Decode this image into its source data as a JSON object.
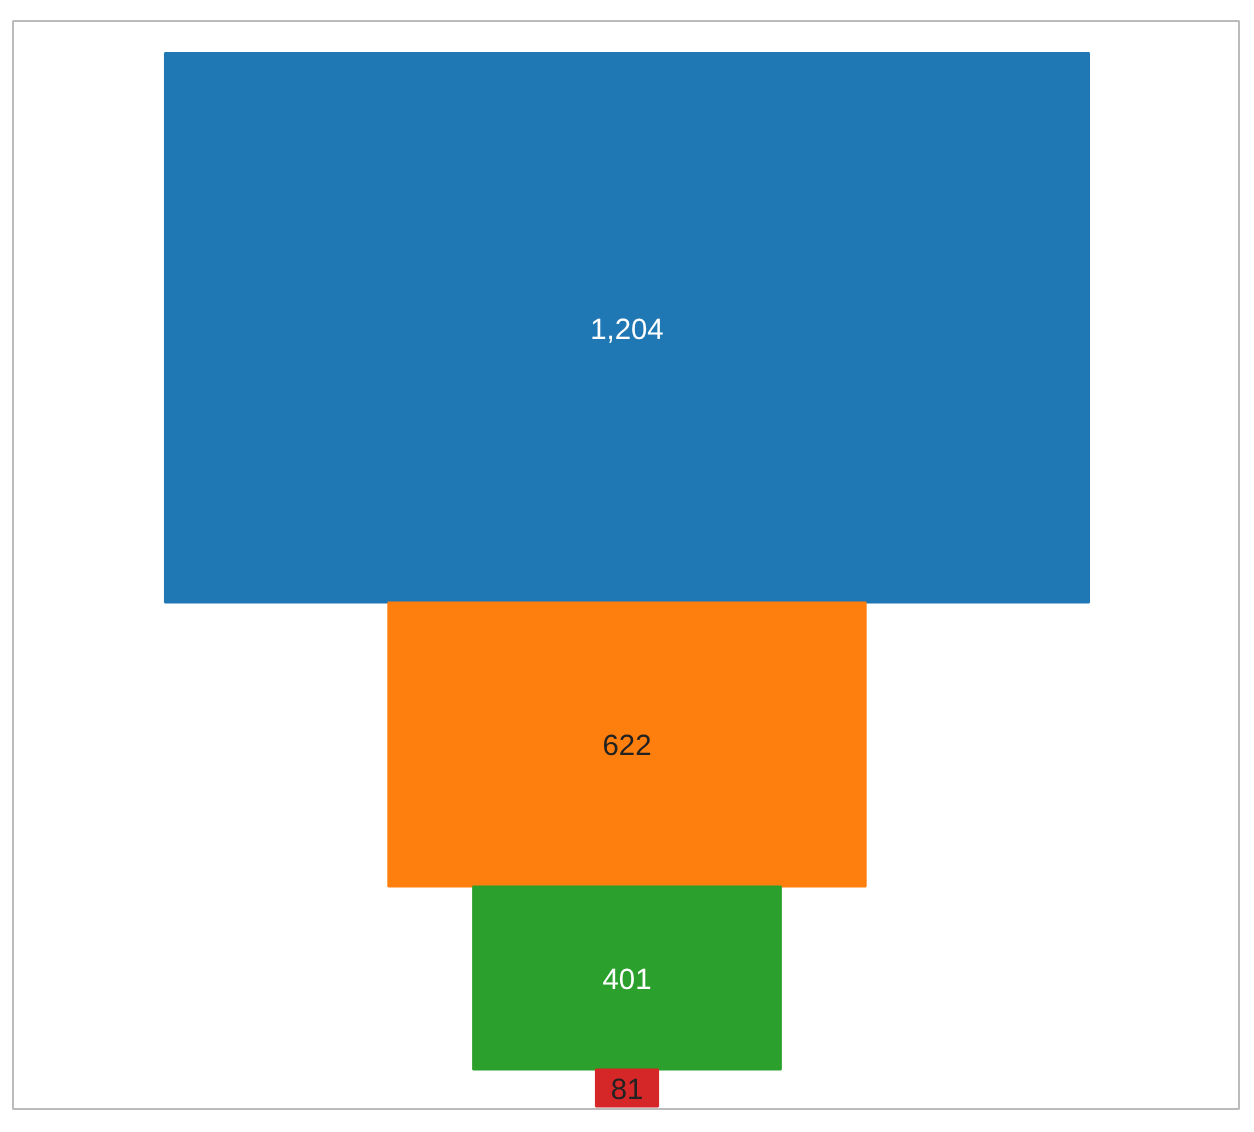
{
  "chart_data": {
    "type": "other",
    "categories": [
      null,
      null,
      null,
      null
    ],
    "values": [
      1204,
      622,
      401,
      81
    ],
    "value_labels": [
      "1,204",
      "622",
      "401",
      "81"
    ],
    "colors": [
      "#1f77b4",
      "#ff7f0e",
      "#2ca02c",
      "#d62728"
    ]
  }
}
